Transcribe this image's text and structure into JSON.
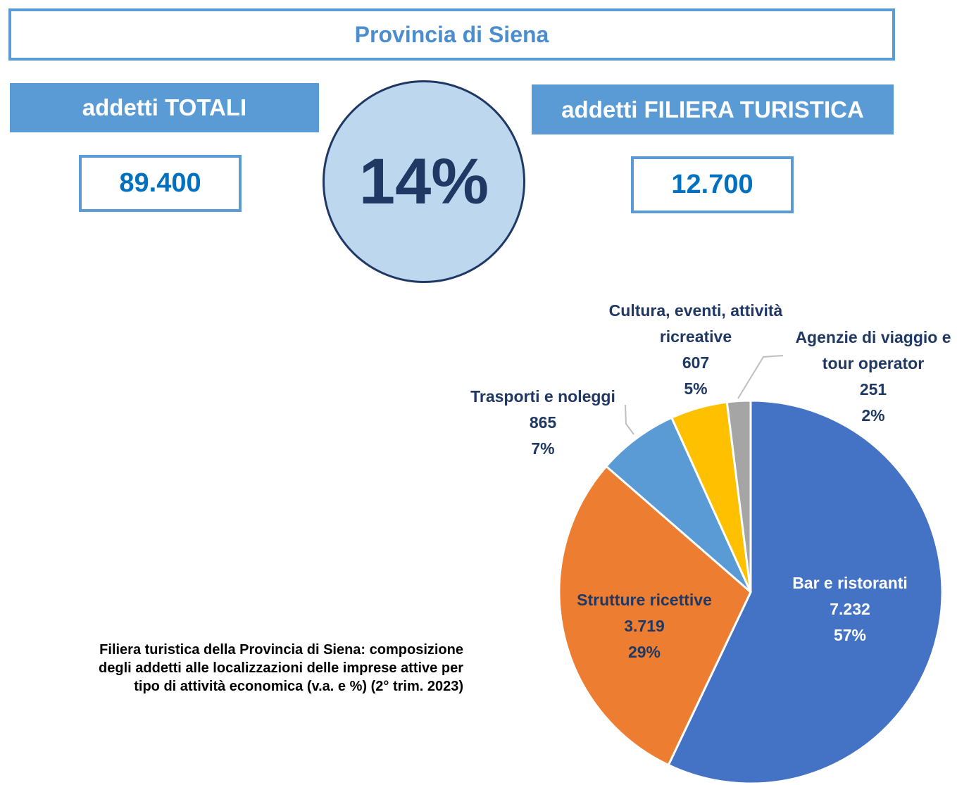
{
  "header": {
    "title": "Provincia di Siena"
  },
  "kpis": {
    "total_label": "addetti TOTALI",
    "total": "89.400",
    "share": "14%",
    "tourism_label": "addetti FILIERA TURISTICA",
    "tourism": "12.700"
  },
  "chart_data": {
    "type": "pie",
    "caption": "Filiera turistica della Provincia di Siena: composizione degli addetti alle localizzazioni delle imprese attive per tipo di attività economica (v.a. e %) (2° trim. 2023)",
    "categories": [
      "Bar e ristoranti",
      "Strutture ricettive",
      "Trasporti e noleggi",
      "Cultura, eventi, attività ricreative",
      "Agenzie di viaggio e tour operator"
    ],
    "values": [
      7232,
      3719,
      865,
      607,
      251
    ],
    "value_labels": [
      "7.232",
      "3.719",
      "865",
      "607",
      "251"
    ],
    "percent_labels": [
      "57%",
      "29%",
      "7%",
      "5%",
      "2%"
    ],
    "colors": [
      "#4472c4",
      "#ed7d31",
      "#5b9bd5",
      "#ffc000",
      "#a5a5a5"
    ]
  }
}
